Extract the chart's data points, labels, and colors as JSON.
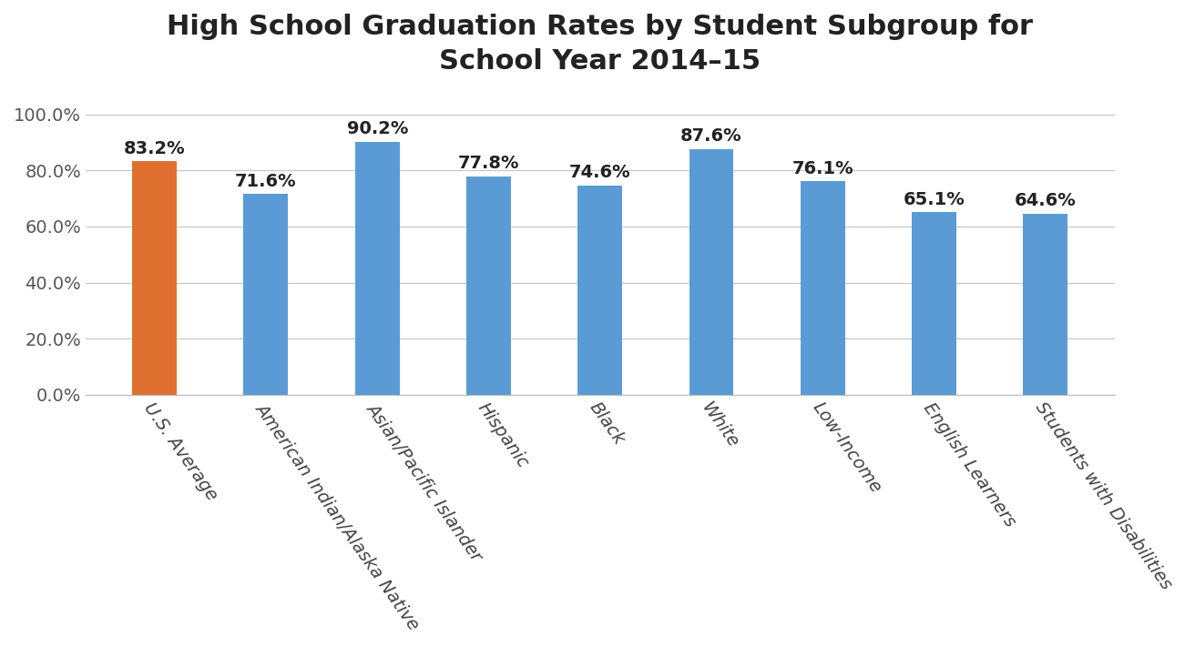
{
  "title": "High School Graduation Rates by Student Subgroup for\nSchool Year 2014–15",
  "categories": [
    "U.S. Average",
    "American Indian/Alaska Native",
    "Asian/Pacific Islander",
    "Hispanic",
    "Black",
    "White",
    "Low-Income",
    "English Learners",
    "Students with Disabilities"
  ],
  "values": [
    83.2,
    71.6,
    90.2,
    77.8,
    74.6,
    87.6,
    76.1,
    65.1,
    64.6
  ],
  "bar_colors": [
    "#E07030",
    "#5B9BD5",
    "#5B9BD5",
    "#5B9BD5",
    "#5B9BD5",
    "#5B9BD5",
    "#5B9BD5",
    "#5B9BD5",
    "#5B9BD5"
  ],
  "ylim": [
    0,
    107
  ],
  "yticks": [
    0,
    20,
    40,
    60,
    80,
    100
  ],
  "ytick_labels": [
    "0.0%",
    "20.0%",
    "40.0%",
    "60.0%",
    "80.0%",
    "100.0%"
  ],
  "title_fontsize": 22,
  "label_fontsize": 14,
  "value_fontsize": 14,
  "tick_fontsize": 14,
  "background_color": "#FFFFFF",
  "grid_color": "#C8C8C8",
  "bar_width": 0.4,
  "label_rotation": -55
}
